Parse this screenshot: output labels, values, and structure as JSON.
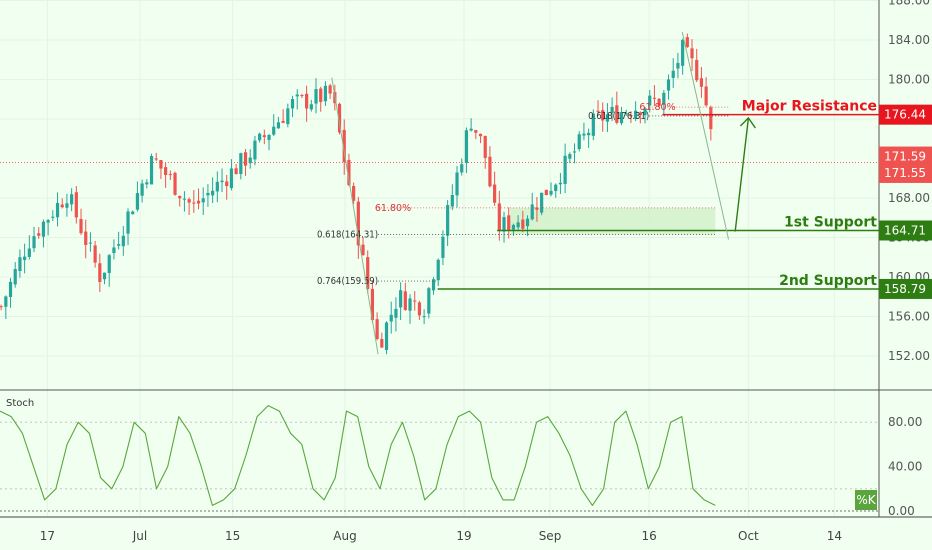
{
  "colors": {
    "background": "#f0fff0",
    "up_candle": "#26a69a",
    "down_candle": "#ef5350",
    "resistance": "#e8141e",
    "support": "#2e7d12",
    "current_price_tag": "#ef5350",
    "stoch_line": "#5aa63c"
  },
  "chart_data": {
    "type": "candlestick",
    "y_axis": {
      "ticks": [
        "188.00",
        "184.00",
        "180.00",
        "176.00",
        "168.00",
        "164.00",
        "160.00",
        "156.00",
        "152.00"
      ],
      "range": [
        149.5,
        188.0
      ]
    },
    "x_axis": {
      "ticks": [
        "17",
        "Jul",
        "15",
        "Aug",
        "19",
        "Sep",
        "16",
        "Oct",
        "14"
      ]
    },
    "price_path": [
      {
        "date": "2019-06-10",
        "value": 157.0
      },
      {
        "date": "2019-06-14",
        "value": 163.5
      },
      {
        "date": "2019-06-20",
        "value": 168.5
      },
      {
        "date": "2019-06-25",
        "value": 160.0
      },
      {
        "date": "2019-07-03",
        "value": 172.0
      },
      {
        "date": "2019-07-09",
        "value": 167.0
      },
      {
        "date": "2019-07-17",
        "value": 172.0
      },
      {
        "date": "2019-07-24",
        "value": 177.5
      },
      {
        "date": "2019-07-30",
        "value": 178.5
      },
      {
        "date": "2019-08-02",
        "value": 168.0
      },
      {
        "date": "2019-08-06",
        "value": 153.0
      },
      {
        "date": "2019-08-09",
        "value": 158.0
      },
      {
        "date": "2019-08-13",
        "value": 157.0
      },
      {
        "date": "2019-08-16",
        "value": 165.0
      },
      {
        "date": "2019-08-20",
        "value": 176.0
      },
      {
        "date": "2019-08-22",
        "value": 173.0
      },
      {
        "date": "2019-08-24",
        "value": 165.0
      },
      {
        "date": "2019-08-28",
        "value": 166.0
      },
      {
        "date": "2019-09-02",
        "value": 170.0
      },
      {
        "date": "2019-09-08",
        "value": 176.0
      },
      {
        "date": "2019-09-13",
        "value": 177.0
      },
      {
        "date": "2019-09-18",
        "value": 178.0
      },
      {
        "date": "2019-09-21",
        "value": 183.0
      },
      {
        "date": "2019-09-24",
        "value": 180.0
      },
      {
        "date": "2019-09-26",
        "value": 171.6
      }
    ],
    "price_labels": [
      {
        "value": 176.44,
        "label": "176.44",
        "color": "#e8141e"
      },
      {
        "value": 171.59,
        "label": "171.59",
        "color": "#ef5350"
      },
      {
        "value": 171.55,
        "label": "171.55",
        "color": "#ef5350"
      },
      {
        "value": 164.71,
        "label": "164.71",
        "color": "#2e7d12"
      },
      {
        "value": 158.79,
        "label": "158.79",
        "color": "#2e7d12"
      }
    ],
    "horizontal_levels": [
      {
        "name": "Major Resistance",
        "value": 176.44,
        "color": "#e8141e"
      },
      {
        "name": "1st Support",
        "value": 164.71,
        "color": "#2e7d12"
      },
      {
        "name": "2nd Support",
        "value": 158.79,
        "color": "#2e7d12"
      }
    ],
    "fib_levels": [
      {
        "label": "61.80%",
        "value": 167.0
      },
      {
        "label": "0.618(164.31)",
        "value": 164.31
      },
      {
        "label": "0.764(159.59)",
        "value": 159.59
      },
      {
        "label": "61.80%",
        "value": 177.2
      },
      {
        "label": "0.618(176.31)",
        "value": 176.31
      }
    ],
    "support_zone": {
      "from": 164.31,
      "to": 167.0
    },
    "stoch": {
      "title": "Stoch",
      "ticks": [
        "80.00",
        "40.00",
        "0.00"
      ],
      "range": [
        0,
        100
      ],
      "reference_levels": [
        80,
        20
      ],
      "legend": "%K",
      "values": [
        90,
        85,
        70,
        40,
        10,
        20,
        60,
        80,
        70,
        30,
        20,
        40,
        80,
        70,
        20,
        40,
        85,
        70,
        40,
        5,
        10,
        20,
        50,
        85,
        95,
        90,
        70,
        60,
        20,
        10,
        30,
        90,
        85,
        40,
        20,
        60,
        80,
        50,
        10,
        20,
        60,
        85,
        90,
        80,
        30,
        10,
        10,
        40,
        80,
        85,
        70,
        50,
        20,
        5,
        20,
        80,
        90,
        60,
        20,
        40,
        80,
        85,
        20,
        10,
        5
      ]
    }
  }
}
